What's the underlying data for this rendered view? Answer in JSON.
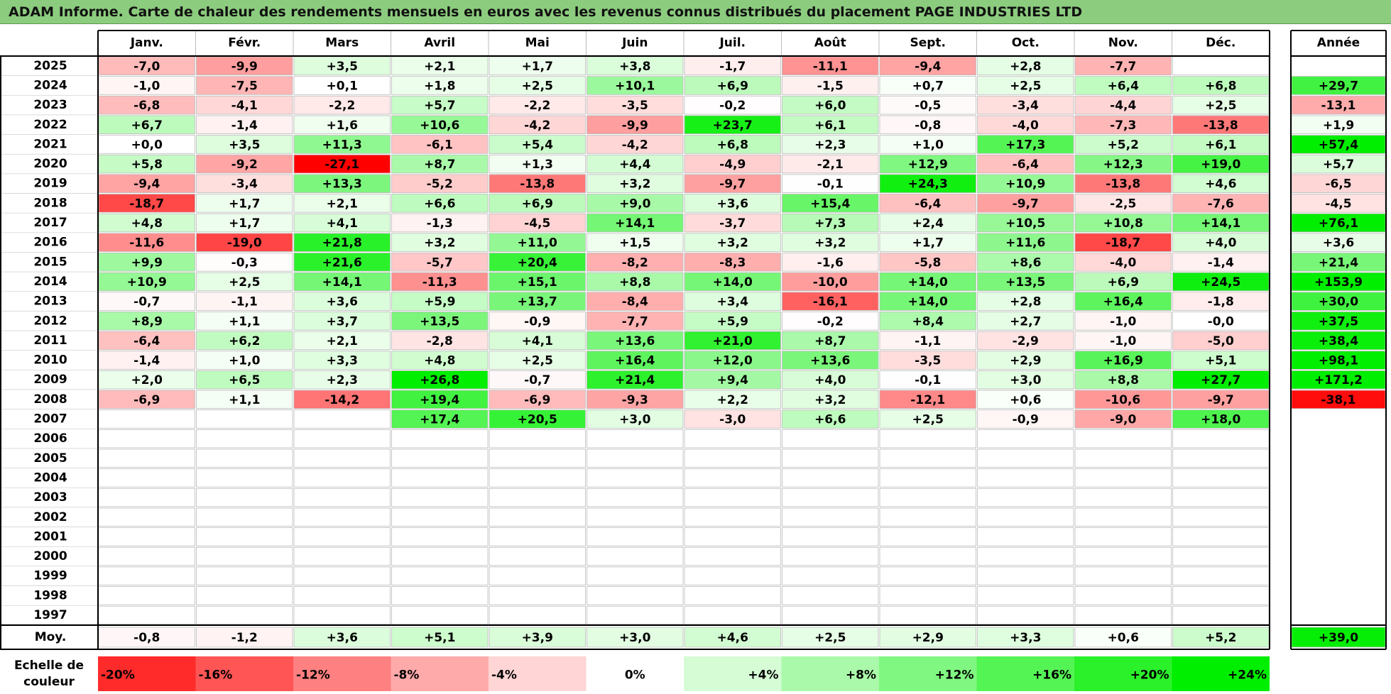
{
  "title": "ADAM Informe. Carte de chaleur des rendements mensuels en euros avec les revenus connus distribués du placement PAGE INDUSTRIES LTD",
  "chart_data": {
    "type": "heatmap",
    "months": [
      "Janv.",
      "Févr.",
      "Mars",
      "Avril",
      "Mai",
      "Juin",
      "Juil.",
      "Août",
      "Sept.",
      "Oct.",
      "Nov.",
      "Déc."
    ],
    "year_header": "Année",
    "avg_label": "Moy.",
    "years": [
      "2025",
      "2024",
      "2023",
      "2022",
      "2021",
      "2020",
      "2019",
      "2018",
      "2017",
      "2016",
      "2015",
      "2014",
      "2013",
      "2012",
      "2011",
      "2010",
      "2009",
      "2008",
      "2007",
      "2006",
      "2005",
      "2004",
      "2003",
      "2002",
      "2001",
      "2000",
      "1999",
      "1998",
      "1997"
    ],
    "values": [
      [
        "-7,0",
        "-9,9",
        "+3,5",
        "+2,1",
        "+1,7",
        "+3,8",
        "-1,7",
        "-11,1",
        "-9,4",
        "+2,8",
        "-7,7",
        ""
      ],
      [
        "-1,0",
        "-7,5",
        "+0,1",
        "+1,8",
        "+2,5",
        "+10,1",
        "+6,9",
        "-1,5",
        "+0,7",
        "+2,5",
        "+6,4",
        "+6,8"
      ],
      [
        "-6,8",
        "-4,1",
        "-2,2",
        "+5,7",
        "-2,2",
        "-3,5",
        "-0,2",
        "+6,0",
        "-0,5",
        "-3,4",
        "-4,4",
        "+2,5"
      ],
      [
        "+6,7",
        "-1,4",
        "+1,6",
        "+10,6",
        "-4,2",
        "-9,9",
        "+23,7",
        "+6,1",
        "-0,8",
        "-4,0",
        "-7,3",
        "-13,8"
      ],
      [
        "+0,0",
        "+3,5",
        "+11,3",
        "-6,1",
        "+5,4",
        "-4,2",
        "+6,8",
        "+2,3",
        "+1,0",
        "+17,3",
        "+5,2",
        "+6,1"
      ],
      [
        "+5,8",
        "-9,2",
        "-27,1",
        "+8,7",
        "+1,3",
        "+4,4",
        "-4,9",
        "-2,1",
        "+12,9",
        "-6,4",
        "+12,3",
        "+19,0"
      ],
      [
        "-9,4",
        "-3,4",
        "+13,3",
        "-5,2",
        "-13,8",
        "+3,2",
        "-9,7",
        "-0,1",
        "+24,3",
        "+10,9",
        "-13,8",
        "+4,6"
      ],
      [
        "-18,7",
        "+1,7",
        "+2,1",
        "+6,6",
        "+6,9",
        "+9,0",
        "+3,6",
        "+15,4",
        "-6,4",
        "-9,7",
        "-2,5",
        "-7,6"
      ],
      [
        "+4,8",
        "+1,7",
        "+4,1",
        "-1,3",
        "-4,5",
        "+14,1",
        "-3,7",
        "+7,3",
        "+2,4",
        "+10,5",
        "+10,8",
        "+14,1"
      ],
      [
        "-11,6",
        "-19,0",
        "+21,8",
        "+3,2",
        "+11,0",
        "+1,5",
        "+3,2",
        "+3,2",
        "+1,7",
        "+11,6",
        "-18,7",
        "+4,0"
      ],
      [
        "+9,9",
        "-0,3",
        "+21,6",
        "-5,7",
        "+20,4",
        "-8,2",
        "-8,3",
        "-1,6",
        "-5,8",
        "+8,6",
        "-4,0",
        "-1,4"
      ],
      [
        "+10,9",
        "+2,5",
        "+14,1",
        "-11,3",
        "+15,1",
        "+8,8",
        "+14,0",
        "-10,0",
        "+14,0",
        "+13,5",
        "+6,9",
        "+24,5"
      ],
      [
        "-0,7",
        "-1,1",
        "+3,6",
        "+5,9",
        "+13,7",
        "-8,4",
        "+3,4",
        "-16,1",
        "+14,0",
        "+2,8",
        "+16,4",
        "-1,8"
      ],
      [
        "+8,9",
        "+1,1",
        "+3,7",
        "+13,5",
        "-0,9",
        "-7,7",
        "+5,9",
        "-0,2",
        "+8,4",
        "+2,7",
        "-1,0",
        "-0,0"
      ],
      [
        "-6,4",
        "+6,2",
        "+2,1",
        "-2,8",
        "+4,1",
        "+13,6",
        "+21,0",
        "+8,7",
        "-1,1",
        "-2,9",
        "-1,0",
        "-5,0"
      ],
      [
        "-1,4",
        "+1,0",
        "+3,3",
        "+4,8",
        "+2,5",
        "+16,4",
        "+12,0",
        "+13,6",
        "-3,5",
        "+2,9",
        "+16,9",
        "+5,1"
      ],
      [
        "+2,0",
        "+6,5",
        "+2,3",
        "+26,8",
        "-0,7",
        "+21,4",
        "+9,4",
        "+4,0",
        "-0,1",
        "+3,0",
        "+8,8",
        "+27,7"
      ],
      [
        "-6,9",
        "+1,1",
        "-14,2",
        "+19,4",
        "-6,9",
        "-9,3",
        "+2,2",
        "+3,2",
        "-12,1",
        "+0,6",
        "-10,6",
        "-9,7"
      ],
      [
        "",
        "",
        "",
        "+17,4",
        "+20,5",
        "+3,0",
        "-3,0",
        "+6,6",
        "+2,5",
        "-0,9",
        "-9,0",
        "+18,0"
      ],
      [
        "",
        "",
        "",
        "",
        "",
        "",
        "",
        "",
        "",
        "",
        "",
        ""
      ],
      [
        "",
        "",
        "",
        "",
        "",
        "",
        "",
        "",
        "",
        "",
        "",
        ""
      ],
      [
        "",
        "",
        "",
        "",
        "",
        "",
        "",
        "",
        "",
        "",
        "",
        ""
      ],
      [
        "",
        "",
        "",
        "",
        "",
        "",
        "",
        "",
        "",
        "",
        "",
        ""
      ],
      [
        "",
        "",
        "",
        "",
        "",
        "",
        "",
        "",
        "",
        "",
        "",
        ""
      ],
      [
        "",
        "",
        "",
        "",
        "",
        "",
        "",
        "",
        "",
        "",
        "",
        ""
      ],
      [
        "",
        "",
        "",
        "",
        "",
        "",
        "",
        "",
        "",
        "",
        "",
        ""
      ],
      [
        "",
        "",
        "",
        "",
        "",
        "",
        "",
        "",
        "",
        "",
        "",
        ""
      ],
      [
        "",
        "",
        "",
        "",
        "",
        "",
        "",
        "",
        "",
        "",
        "",
        ""
      ],
      [
        "",
        "",
        "",
        "",
        "",
        "",
        "",
        "",
        "",
        "",
        "",
        ""
      ]
    ],
    "annual": [
      "",
      "+29,7",
      "-13,1",
      "+1,9",
      "+57,4",
      "+5,7",
      "-6,5",
      "-4,5",
      "+76,1",
      "+3,6",
      "+21,4",
      "+153,9",
      "+30,0",
      "+37,5",
      "+38,4",
      "+98,1",
      "+171,2",
      "-38,1",
      "",
      "",
      "",
      "",
      "",
      "",
      "",
      "",
      "",
      "",
      ""
    ],
    "avg_values": [
      "-0,8",
      "-1,2",
      "+3,6",
      "+5,1",
      "+3,9",
      "+3,0",
      "+4,6",
      "+2,5",
      "+2,9",
      "+3,3",
      "+0,6",
      "+5,2"
    ],
    "avg_annual": "+39,0",
    "scale_label": "Echelle de couleur",
    "scale": [
      {
        "label": "-20%",
        "value": -20
      },
      {
        "label": "-16%",
        "value": -16
      },
      {
        "label": "-12%",
        "value": -12
      },
      {
        "label": "-8%",
        "value": -8
      },
      {
        "label": "-4%",
        "value": -4
      },
      {
        "label": "0%",
        "value": 0
      },
      {
        "label": "+4%",
        "value": 4
      },
      {
        "label": "+8%",
        "value": 8
      },
      {
        "label": "+12%",
        "value": 12
      },
      {
        "label": "+16%",
        "value": 16
      },
      {
        "label": "+20%",
        "value": 20
      },
      {
        "label": "+24%",
        "value": 24
      }
    ],
    "colors": {
      "negative": "#ff0000",
      "neutral": "#ffffff",
      "positive": "#00ee00"
    }
  }
}
